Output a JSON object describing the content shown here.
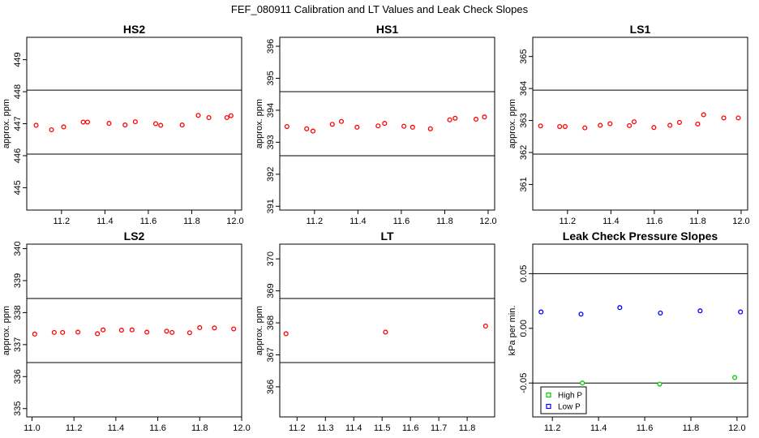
{
  "figure": {
    "title": "FEF_080911  Calibration and LT Values and Leak Check Slopes",
    "colors": {
      "calibration_red": "#FF0000",
      "high_p_green": "#00CD00",
      "low_p_blue": "#0000FF",
      "axis_black": "#000000"
    }
  },
  "chart_data": [
    {
      "type": "scatter",
      "id": "hs2",
      "title": "HS2",
      "ylabel": "approx. ppm",
      "xlim": [
        11.04,
        12.03
      ],
      "ylim": [
        444.3,
        449.7
      ],
      "xtick_values": [
        11.2,
        11.4,
        11.6,
        11.8,
        12.0
      ],
      "xtick_labels": [
        "11.2",
        "11.4",
        "11.6",
        "11.8",
        "12.0"
      ],
      "ytick_values": [
        445,
        446,
        447,
        448,
        449
      ],
      "ytick_labels": [
        "445",
        "446",
        "447",
        "448",
        "449"
      ],
      "hlines": [
        446.05,
        448.05
      ],
      "series": [
        {
          "name": "HS2 approx ppm",
          "color": "#FF0000",
          "points": [
            [
              11.083,
              446.95
            ],
            [
              11.154,
              446.81
            ],
            [
              11.21,
              446.9
            ],
            [
              11.3,
              447.05
            ],
            [
              11.32,
              447.05
            ],
            [
              11.419,
              447.01
            ],
            [
              11.493,
              446.96
            ],
            [
              11.54,
              447.06
            ],
            [
              11.634,
              447.0
            ],
            [
              11.657,
              446.95
            ],
            [
              11.756,
              446.96
            ],
            [
              11.83,
              447.26
            ],
            [
              11.879,
              447.19
            ],
            [
              11.962,
              447.19
            ],
            [
              11.981,
              447.25
            ]
          ]
        }
      ],
      "legend": null
    },
    {
      "type": "scatter",
      "id": "hs1",
      "title": "HS1",
      "ylabel": "approx. ppm",
      "xlim": [
        11.04,
        12.03
      ],
      "ylim": [
        390.88,
        396.28
      ],
      "xtick_values": [
        11.2,
        11.4,
        11.6,
        11.8,
        12.0
      ],
      "xtick_labels": [
        "11.2",
        "11.4",
        "11.6",
        "11.8",
        "12.0"
      ],
      "ytick_values": [
        391,
        392,
        393,
        394,
        395,
        396
      ],
      "ytick_labels": [
        "391",
        "392",
        "393",
        "394",
        "395",
        "396"
      ],
      "hlines": [
        392.58,
        394.58
      ],
      "series": [
        {
          "name": "HS1 approx ppm",
          "color": "#FF0000",
          "points": [
            [
              11.073,
              393.49
            ],
            [
              11.164,
              393.42
            ],
            [
              11.193,
              393.35
            ],
            [
              11.282,
              393.56
            ],
            [
              11.324,
              393.65
            ],
            [
              11.396,
              393.47
            ],
            [
              11.493,
              393.51
            ],
            [
              11.523,
              393.59
            ],
            [
              11.612,
              393.5
            ],
            [
              11.652,
              393.47
            ],
            [
              11.734,
              393.42
            ],
            [
              11.823,
              393.7
            ],
            [
              11.848,
              393.75
            ],
            [
              11.944,
              393.72
            ],
            [
              11.983,
              393.79
            ]
          ]
        }
      ],
      "legend": null
    },
    {
      "type": "scatter",
      "id": "ls1",
      "title": "LS1",
      "ylabel": "approx. ppm",
      "xlim": [
        11.04,
        12.03
      ],
      "ylim": [
        360.2,
        365.6
      ],
      "xtick_values": [
        11.2,
        11.4,
        11.6,
        11.8,
        12.0
      ],
      "xtick_labels": [
        "11.2",
        "11.4",
        "11.6",
        "11.8",
        "12.0"
      ],
      "ytick_values": [
        361,
        362,
        363,
        364,
        365
      ],
      "ytick_labels": [
        "361",
        "362",
        "363",
        "364",
        "365"
      ],
      "hlines": [
        361.95,
        363.95
      ],
      "series": [
        {
          "name": "LS1 approx ppm",
          "color": "#FF0000",
          "points": [
            [
              11.076,
              362.83
            ],
            [
              11.164,
              362.81
            ],
            [
              11.189,
              362.81
            ],
            [
              11.28,
              362.77
            ],
            [
              11.351,
              362.85
            ],
            [
              11.396,
              362.9
            ],
            [
              11.485,
              362.84
            ],
            [
              11.507,
              362.96
            ],
            [
              11.598,
              362.78
            ],
            [
              11.672,
              362.85
            ],
            [
              11.716,
              362.94
            ],
            [
              11.8,
              362.89
            ],
            [
              11.827,
              363.18
            ],
            [
              11.92,
              363.08
            ],
            [
              11.987,
              363.08
            ]
          ]
        }
      ],
      "legend": null
    },
    {
      "type": "scatter",
      "id": "ls2",
      "title": "LS2",
      "ylabel": "approx. ppm",
      "xlim": [
        10.975,
        12.0
      ],
      "ylim": [
        334.74,
        340.14
      ],
      "xtick_values": [
        11.0,
        11.2,
        11.4,
        11.6,
        11.8,
        12.0
      ],
      "xtick_labels": [
        "11.0",
        "11.2",
        "11.4",
        "11.6",
        "11.8",
        "12.0"
      ],
      "ytick_values": [
        335,
        336,
        337,
        338,
        339,
        340
      ],
      "ytick_labels": [
        "335",
        "336",
        "337",
        "338",
        "339",
        "340"
      ],
      "hlines": [
        336.44,
        338.44
      ],
      "series": [
        {
          "name": "LS2 approx ppm",
          "color": "#FF0000",
          "points": [
            [
              11.013,
              337.33
            ],
            [
              11.106,
              337.38
            ],
            [
              11.146,
              337.38
            ],
            [
              11.219,
              337.39
            ],
            [
              11.312,
              337.34
            ],
            [
              11.339,
              337.46
            ],
            [
              11.427,
              337.45
            ],
            [
              11.477,
              337.46
            ],
            [
              11.548,
              337.39
            ],
            [
              11.642,
              337.42
            ],
            [
              11.668,
              337.38
            ],
            [
              11.752,
              337.37
            ],
            [
              11.8,
              337.53
            ],
            [
              11.87,
              337.52
            ],
            [
              11.962,
              337.49
            ]
          ]
        }
      ],
      "legend": null
    },
    {
      "type": "scatter",
      "id": "lt",
      "title": "LT",
      "ylabel": "approx. ppm",
      "xlim": [
        11.139,
        11.897
      ],
      "ylim": [
        365.06,
        370.46
      ],
      "xtick_values": [
        11.2,
        11.3,
        11.4,
        11.5,
        11.6,
        11.7,
        11.8
      ],
      "xtick_labels": [
        "11.2",
        "11.3",
        "11.4",
        "11.5",
        "11.6",
        "11.7",
        "11.8"
      ],
      "ytick_values": [
        366,
        367,
        368,
        369,
        370
      ],
      "ytick_labels": [
        "366",
        "367",
        "368",
        "369",
        "370"
      ],
      "hlines": [
        366.76,
        368.76
      ],
      "series": [
        {
          "name": "LT approx ppm",
          "color": "#FF0000",
          "points": [
            [
              11.161,
              367.66
            ],
            [
              11.512,
              367.71
            ],
            [
              11.865,
              367.9
            ]
          ]
        }
      ],
      "legend": null
    },
    {
      "type": "scatter",
      "id": "leak-check",
      "title": "Leak Check Pressure Slopes",
      "ylabel": "kPa per min.",
      "xlim": [
        11.115,
        12.046
      ],
      "ylim": [
        -0.081,
        0.077
      ],
      "xtick_values": [
        11.2,
        11.4,
        11.6,
        11.8,
        12.0
      ],
      "xtick_labels": [
        "11.2",
        "11.4",
        "11.6",
        "11.8",
        "12.0"
      ],
      "ytick_values": [
        -0.05,
        0.0,
        0.05
      ],
      "ytick_labels": [
        "-0.05",
        "0.00",
        "0.05"
      ],
      "hlines": [
        -0.05,
        0.05
      ],
      "series": [
        {
          "name": "High P",
          "color": "#00CD00",
          "points": [
            [
              11.33,
              -0.05
            ],
            [
              11.665,
              -0.051
            ],
            [
              11.99,
              -0.045
            ]
          ]
        },
        {
          "name": "Low P",
          "color": "#0000FF",
          "points": [
            [
              11.151,
              0.015
            ],
            [
              11.324,
              0.013
            ],
            [
              11.492,
              0.019
            ],
            [
              11.668,
              0.014
            ],
            [
              11.84,
              0.016
            ],
            [
              12.015,
              0.015
            ]
          ]
        }
      ],
      "legend": {
        "entries": [
          {
            "label": "High P",
            "color": "#00CD00"
          },
          {
            "label": "Low P",
            "color": "#0000FF"
          }
        ]
      }
    }
  ]
}
